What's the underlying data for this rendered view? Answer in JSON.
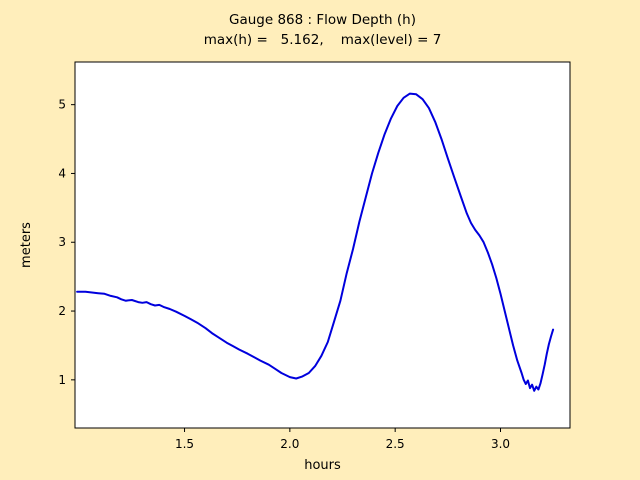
{
  "figure": {
    "background": "#ffeebb",
    "plot_background": "#ffffff",
    "axes_color": "#000000"
  },
  "chart_data": {
    "type": "line",
    "title": "Gauge 868 : Flow Depth (h)",
    "subtitle": "max(h) =   5.162,    max(level) = 7",
    "xlabel": "hours",
    "ylabel": "meters",
    "xlim": [
      0.98,
      3.33
    ],
    "ylim": [
      0.3,
      5.62
    ],
    "xtick_values": [
      1.5,
      2.0,
      2.5,
      3.0
    ],
    "xtick_labels": [
      "1.5",
      "2.0",
      "2.5",
      "3.0"
    ],
    "ytick_values": [
      1,
      2,
      3,
      4,
      5
    ],
    "ytick_labels": [
      "1",
      "2",
      "3",
      "4",
      "5"
    ],
    "grid": false,
    "legend": "none",
    "max_h": 5.162,
    "max_level": 7,
    "x": [
      0.99,
      1.03,
      1.06,
      1.09,
      1.12,
      1.15,
      1.18,
      1.2,
      1.22,
      1.25,
      1.28,
      1.3,
      1.32,
      1.34,
      1.36,
      1.38,
      1.4,
      1.43,
      1.46,
      1.5,
      1.53,
      1.56,
      1.6,
      1.63,
      1.66,
      1.7,
      1.73,
      1.76,
      1.8,
      1.83,
      1.86,
      1.9,
      1.93,
      1.96,
      2.0,
      2.03,
      2.06,
      2.09,
      2.12,
      2.15,
      2.18,
      2.21,
      2.24,
      2.27,
      2.3,
      2.33,
      2.36,
      2.39,
      2.42,
      2.45,
      2.48,
      2.51,
      2.54,
      2.57,
      2.6,
      2.63,
      2.66,
      2.69,
      2.72,
      2.75,
      2.78,
      2.81,
      2.84,
      2.86,
      2.88,
      2.9,
      2.92,
      2.94,
      2.96,
      2.98,
      3.0,
      3.02,
      3.04,
      3.06,
      3.08,
      3.1,
      3.11,
      3.12,
      3.13,
      3.14,
      3.15,
      3.16,
      3.17,
      3.18,
      3.19,
      3.2,
      3.21,
      3.22,
      3.23,
      3.24,
      3.25
    ],
    "series": [
      {
        "name": "flow depth h",
        "color": "#0000dd",
        "values": [
          2.28,
          2.28,
          2.27,
          2.26,
          2.25,
          2.22,
          2.2,
          2.17,
          2.15,
          2.16,
          2.13,
          2.12,
          2.13,
          2.1,
          2.08,
          2.09,
          2.06,
          2.03,
          1.99,
          1.93,
          1.88,
          1.83,
          1.75,
          1.68,
          1.62,
          1.54,
          1.49,
          1.44,
          1.38,
          1.33,
          1.28,
          1.22,
          1.16,
          1.1,
          1.04,
          1.02,
          1.05,
          1.1,
          1.2,
          1.35,
          1.55,
          1.85,
          2.15,
          2.55,
          2.9,
          3.3,
          3.65,
          4.0,
          4.3,
          4.57,
          4.8,
          4.98,
          5.1,
          5.16,
          5.15,
          5.08,
          4.95,
          4.75,
          4.5,
          4.22,
          3.95,
          3.68,
          3.42,
          3.28,
          3.18,
          3.1,
          3.0,
          2.85,
          2.68,
          2.48,
          2.25,
          2.0,
          1.75,
          1.5,
          1.28,
          1.1,
          1.0,
          0.94,
          0.99,
          0.88,
          0.93,
          0.84,
          0.9,
          0.86,
          0.95,
          1.08,
          1.22,
          1.38,
          1.52,
          1.63,
          1.73
        ]
      }
    ]
  }
}
